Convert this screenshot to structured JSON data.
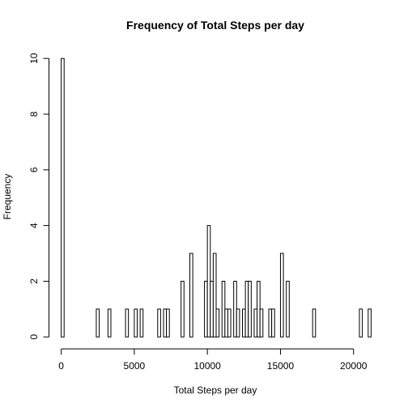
{
  "chart_data": {
    "type": "bar",
    "title": "Frequency of Total Steps per day",
    "xlabel": "Total Steps per day",
    "ylabel": "Frequency",
    "xlim": [
      0,
      21194
    ],
    "ylim": [
      0,
      10
    ],
    "x_ticks": [
      0,
      5000,
      10000,
      15000,
      20000
    ],
    "y_ticks": [
      0,
      2,
      4,
      6,
      8,
      10
    ],
    "grid": false,
    "bin_width": 200,
    "bins": [
      {
        "start": 0,
        "end": 200,
        "count": 10
      },
      {
        "start": 2400,
        "end": 2600,
        "count": 1
      },
      {
        "start": 3200,
        "end": 3400,
        "count": 1
      },
      {
        "start": 4400,
        "end": 4600,
        "count": 1
      },
      {
        "start": 5000,
        "end": 5200,
        "count": 1
      },
      {
        "start": 5400,
        "end": 5600,
        "count": 1
      },
      {
        "start": 6600,
        "end": 6800,
        "count": 1
      },
      {
        "start": 7000,
        "end": 7200,
        "count": 1
      },
      {
        "start": 7200,
        "end": 7400,
        "count": 1
      },
      {
        "start": 8200,
        "end": 8400,
        "count": 2
      },
      {
        "start": 8800,
        "end": 9000,
        "count": 3
      },
      {
        "start": 9800,
        "end": 10000,
        "count": 2
      },
      {
        "start": 10000,
        "end": 10200,
        "count": 4
      },
      {
        "start": 10200,
        "end": 10400,
        "count": 2
      },
      {
        "start": 10400,
        "end": 10600,
        "count": 3
      },
      {
        "start": 10600,
        "end": 10800,
        "count": 1
      },
      {
        "start": 11000,
        "end": 11200,
        "count": 2
      },
      {
        "start": 11200,
        "end": 11400,
        "count": 1
      },
      {
        "start": 11400,
        "end": 11600,
        "count": 1
      },
      {
        "start": 11800,
        "end": 12000,
        "count": 2
      },
      {
        "start": 12000,
        "end": 12200,
        "count": 1
      },
      {
        "start": 12400,
        "end": 12600,
        "count": 1
      },
      {
        "start": 12600,
        "end": 12800,
        "count": 2
      },
      {
        "start": 12800,
        "end": 13000,
        "count": 2
      },
      {
        "start": 13200,
        "end": 13400,
        "count": 1
      },
      {
        "start": 13400,
        "end": 13600,
        "count": 2
      },
      {
        "start": 13600,
        "end": 13800,
        "count": 1
      },
      {
        "start": 14200,
        "end": 14400,
        "count": 1
      },
      {
        "start": 14400,
        "end": 14600,
        "count": 1
      },
      {
        "start": 15000,
        "end": 15200,
        "count": 3
      },
      {
        "start": 15400,
        "end": 15600,
        "count": 2
      },
      {
        "start": 17200,
        "end": 17400,
        "count": 1
      },
      {
        "start": 20400,
        "end": 20600,
        "count": 1
      },
      {
        "start": 21000,
        "end": 21200,
        "count": 1
      }
    ]
  }
}
